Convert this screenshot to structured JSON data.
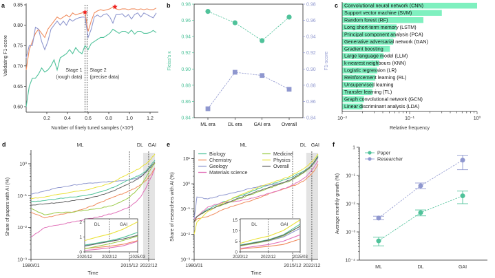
{
  "colors": {
    "teal": "#4fc29a",
    "orange": "#f08b5d",
    "lavender": "#8f97cf",
    "pink": "#e170b8",
    "green": "#9ccc4a",
    "yellow": "#eae23a",
    "gray": "#636363",
    "bar": "#7ff0bf",
    "red_star": "#ee2222",
    "shade": "#e3e3e3"
  },
  "chart_data": [
    {
      "panel": "a",
      "type": "line",
      "ylabel": "Validating F1-score",
      "xlabel": "Number of finely tuned samples (×10³)",
      "xlim": [
        0,
        1.28
      ],
      "ylim": [
        0.6,
        0.85
      ],
      "xticks": [
        "0.2",
        "0.4",
        "0.6",
        "0.8",
        "1.0",
        "1.2"
      ],
      "xtick_values": [
        0.2,
        0.4,
        0.6,
        0.8,
        1.0,
        1.2
      ],
      "yticks": [
        "0.60",
        "0.65",
        "0.70",
        "0.75",
        "0.80",
        "0.85"
      ],
      "ytick_values": [
        0.6,
        0.65,
        0.7,
        0.75,
        0.8,
        0.85
      ],
      "annotations": {
        "stage1": "Stage 1",
        "stage1_sub": "(rough data)",
        "stage2": "Stage 2",
        "stage2_sub": "(precise data)"
      },
      "stage_lines": [
        0.57,
        0.59
      ],
      "x": [
        0.0,
        0.03,
        0.06,
        0.09,
        0.12,
        0.15,
        0.18,
        0.21,
        0.24,
        0.27,
        0.3,
        0.33,
        0.36,
        0.39,
        0.42,
        0.45,
        0.48,
        0.51,
        0.54,
        0.57,
        0.6,
        0.63,
        0.66,
        0.69,
        0.72,
        0.75,
        0.78,
        0.81,
        0.84,
        0.87,
        0.9,
        0.93,
        0.96,
        0.99,
        1.02,
        1.05,
        1.08,
        1.11,
        1.14,
        1.17,
        1.2,
        1.23,
        1.26
      ],
      "series": [
        {
          "name": "orange",
          "color_key": "orange",
          "values": [
            0.69,
            0.74,
            0.76,
            0.78,
            0.79,
            0.78,
            0.77,
            0.79,
            0.8,
            0.81,
            0.82,
            0.815,
            0.82,
            0.825,
            0.82,
            0.83,
            0.825,
            0.828,
            0.83,
            0.832,
            0.785,
            0.81,
            0.83,
            0.835,
            0.838,
            0.836,
            0.838,
            0.84,
            0.845,
            0.84,
            0.838,
            0.84,
            0.84,
            0.838,
            0.84,
            0.84,
            0.838,
            0.84,
            0.838,
            0.84,
            0.838,
            0.838,
            0.842
          ]
        },
        {
          "name": "lavender",
          "color_key": "lavender",
          "values": [
            0.72,
            0.75,
            0.75,
            0.795,
            0.79,
            0.76,
            0.74,
            0.76,
            0.79,
            0.8,
            0.81,
            0.8,
            0.81,
            0.8,
            0.815,
            0.81,
            0.815,
            0.818,
            0.82,
            0.82,
            0.77,
            0.79,
            0.82,
            0.825,
            0.82,
            0.826,
            0.828,
            0.82,
            0.805,
            0.826,
            0.826,
            0.828,
            0.82,
            0.826,
            0.815,
            0.826,
            0.83,
            0.82,
            0.83,
            0.826,
            0.822,
            0.818,
            0.83
          ]
        },
        {
          "name": "teal",
          "color_key": "teal",
          "values": [
            0.6,
            0.65,
            0.67,
            0.67,
            0.68,
            0.695,
            0.685,
            0.69,
            0.7,
            0.715,
            0.69,
            0.72,
            0.725,
            0.73,
            0.74,
            0.73,
            0.745,
            0.735,
            0.73,
            0.75,
            0.74,
            0.755,
            0.76,
            0.765,
            0.77,
            0.77,
            0.775,
            0.78,
            0.79,
            0.785,
            0.78,
            0.785,
            0.785,
            0.78,
            0.788,
            0.778,
            0.785,
            0.785,
            0.78,
            0.78,
            0.782,
            0.787,
            0.782
          ]
        }
      ],
      "best_markers": [
        {
          "x": 0.57,
          "y": 0.832
        },
        {
          "x": 0.86,
          "y": 0.845
        }
      ]
    },
    {
      "panel": "b",
      "type": "line",
      "categories": [
        "ML era",
        "DL era",
        "GAI era",
        "Overall"
      ],
      "ylabel_left": "Fleiss's κ",
      "ylabel_right": "F1-score",
      "ylim": [
        0.84,
        0.98
      ],
      "yticks": [
        "0.84",
        "0.86",
        "0.88",
        "0.90",
        "0.92",
        "0.94",
        "0.96",
        "0.98"
      ],
      "ytick_values": [
        0.84,
        0.86,
        0.88,
        0.9,
        0.92,
        0.94,
        0.96,
        0.98
      ],
      "series": [
        {
          "name": "Fleiss's κ",
          "marker": "circle",
          "color_key": "teal",
          "values": [
            0.971,
            0.957,
            0.935,
            0.964
          ]
        },
        {
          "name": "F1-score",
          "marker": "square",
          "color_key": "lavender",
          "values": [
            0.851,
            0.896,
            0.892,
            0.875
          ]
        }
      ]
    },
    {
      "panel": "c",
      "type": "bar",
      "orientation": "horizontal",
      "xlabel": "Relative frequency",
      "xscale": "log",
      "xlim": [
        0.01,
        1
      ],
      "xticks": [
        "10⁻²",
        "10⁻¹",
        "10⁰"
      ],
      "xtick_values": [
        0.01,
        0.1,
        1
      ],
      "categories": [
        "Convolutional neural network (CNN)",
        "Support vector machine (SVM)",
        "Random forest (RF)",
        "Long short-term memory (LSTM)",
        "Principal component analysis (PCA)",
        "Generative adversarial network (GAN)",
        "Gradient boosting",
        "Large language model (LLM)",
        "k-nearest neighbours (KNN)",
        "Logistic regression (LR)",
        "Reinforcement learning (RL)",
        "Unsupervised learning",
        "Transfer learning (TL)",
        "Graph convolutional network (GCN)",
        "Linear discriminant analysis (LDA)"
      ],
      "values": [
        1.0,
        0.3,
        0.16,
        0.064,
        0.062,
        0.057,
        0.051,
        0.041,
        0.035,
        0.033,
        0.031,
        0.029,
        0.028,
        0.021,
        0.02
      ]
    },
    {
      "panel": "d",
      "type": "line",
      "ylabel": "Share of papers with AI (%)",
      "xlabel": "Time",
      "yscale": "log",
      "ylim": [
        0.001,
        2
      ],
      "yticks": [
        "10⁻³",
        "10⁻²",
        "10⁻¹",
        "10⁰"
      ],
      "ytick_values": [
        0.001,
        0.01,
        0.1,
        1
      ],
      "xlim": [
        1980.0,
        2025.2
      ],
      "xticks": [
        "1980/01",
        "2015/12",
        "2022/12"
      ],
      "xtick_values": [
        1980.0,
        2015.92,
        2022.92
      ],
      "eras": {
        "ml": "ML",
        "dl": "DL",
        "gai": "GAI"
      },
      "era_bounds": [
        2015.92,
        2022.92
      ],
      "x": [
        1980,
        1985,
        1990,
        1995,
        2000,
        2005,
        2010,
        2015,
        2018,
        2020,
        2022,
        2023,
        2024,
        2025.2
      ],
      "series": [
        {
          "name": "Geology",
          "color_key": "lavender",
          "values": [
            0.11,
            0.14,
            0.18,
            0.21,
            0.24,
            0.26,
            0.28,
            0.3,
            0.34,
            0.4,
            0.55,
            0.7,
            0.85,
            1.1
          ]
        },
        {
          "name": "Physics",
          "color_key": "yellow",
          "values": [
            0.08,
            0.09,
            0.11,
            0.13,
            0.15,
            0.19,
            0.27,
            0.45,
            0.6,
            0.75,
            1.0,
            1.2,
            1.5,
            2.0
          ]
        },
        {
          "name": "Biology",
          "color_key": "teal",
          "values": [
            0.065,
            0.07,
            0.08,
            0.09,
            0.1,
            0.13,
            0.18,
            0.3,
            0.38,
            0.45,
            0.6,
            0.75,
            0.95,
            1.3
          ]
        },
        {
          "name": "Overall",
          "color_key": "gray",
          "values": [
            0.05,
            0.055,
            0.06,
            0.07,
            0.08,
            0.1,
            0.14,
            0.22,
            0.3,
            0.38,
            0.55,
            0.7,
            0.85,
            1.1
          ]
        },
        {
          "name": "Chemistry",
          "color_key": "orange",
          "values": [
            0.03,
            0.02,
            0.025,
            0.03,
            0.04,
            0.06,
            0.09,
            0.13,
            0.17,
            0.22,
            0.3,
            0.38,
            0.5,
            0.75
          ]
        },
        {
          "name": "Medicine",
          "color_key": "green",
          "values": [
            0.04,
            0.025,
            0.03,
            0.03,
            0.035,
            0.04,
            0.05,
            0.08,
            0.13,
            0.2,
            0.38,
            0.55,
            0.75,
            1.05
          ]
        },
        {
          "name": "Materials science",
          "color_key": "pink",
          "values": [
            0.005,
            0.01,
            0.012,
            0.015,
            0.018,
            0.022,
            0.028,
            0.04,
            0.06,
            0.09,
            0.18,
            0.28,
            0.4,
            0.7
          ]
        }
      ],
      "inset": {
        "yticks": [
          "0",
          "1",
          "2"
        ],
        "ytick_values": [
          0,
          1,
          2
        ],
        "xticks": [
          "2020/12",
          "2022/12",
          "2025/03"
        ],
        "labels": {
          "dl": "DL",
          "gai": "GAI"
        }
      }
    },
    {
      "panel": "e",
      "type": "line",
      "ylabel": "Share of researchers with AI (%)",
      "xlabel": "Time",
      "yscale": "log",
      "ylim": [
        0.001,
        15
      ],
      "yticks": [
        "10⁻³",
        "10⁻²",
        "10⁻¹",
        "10⁰",
        "10¹"
      ],
      "ytick_values": [
        0.001,
        0.01,
        0.1,
        1,
        10
      ],
      "xlim": [
        1980.0,
        2025.2
      ],
      "xticks": [
        "1980/01",
        "2015/12",
        "2022/12"
      ],
      "xtick_values": [
        1980.0,
        2015.92,
        2022.92
      ],
      "eras": {
        "ml": "ML",
        "dl": "DL",
        "gai": "GAI"
      },
      "era_bounds": [
        2015.92,
        2022.92
      ],
      "legend": [
        "Biology",
        "Chemistry",
        "Geology",
        "Materials science",
        "Medicine",
        "Physics",
        "Overall"
      ],
      "x": [
        1980,
        1981,
        1985,
        1990,
        1995,
        2000,
        2005,
        2010,
        2015,
        2018,
        2020,
        2022,
        2023,
        2024,
        2025.2
      ],
      "series": [
        {
          "name": "Biology",
          "color_key": "teal",
          "values": [
            0.04,
            0.05,
            0.1,
            0.18,
            0.28,
            0.45,
            0.75,
            1.1,
            1.7,
            2.5,
            3.2,
            4.5,
            5.8,
            8,
            13
          ]
        },
        {
          "name": "Chemistry",
          "color_key": "orange",
          "values": [
            0.03,
            0.04,
            0.05,
            0.09,
            0.14,
            0.2,
            0.32,
            0.5,
            0.75,
            1.0,
            1.3,
            2.0,
            2.6,
            3.5,
            6
          ]
        },
        {
          "name": "Geology",
          "color_key": "lavender",
          "values": [
            0.04,
            0.3,
            0.25,
            0.35,
            0.45,
            0.65,
            0.85,
            1.0,
            1.3,
            2.0,
            2.8,
            4.0,
            5.2,
            7,
            11
          ]
        },
        {
          "name": "Materials science",
          "color_key": "pink",
          "values": [
            0.04,
            0.05,
            0.12,
            0.18,
            0.2,
            0.25,
            0.35,
            0.5,
            0.8,
            1.2,
            1.6,
            2.6,
            3.5,
            5,
            8
          ]
        },
        {
          "name": "Medicine",
          "color_key": "green",
          "values": [
            0.03,
            0.05,
            0.09,
            0.14,
            0.22,
            0.35,
            0.55,
            0.85,
            1.3,
            2.0,
            2.8,
            4.0,
            5.4,
            7.5,
            12
          ]
        },
        {
          "name": "Physics",
          "color_key": "yellow",
          "values": [
            0.01,
            0.03,
            0.08,
            0.16,
            0.3,
            0.5,
            0.85,
            1.3,
            2.0,
            3.0,
            4.0,
            6.0,
            7.5,
            10,
            15
          ]
        },
        {
          "name": "Overall",
          "color_key": "gray",
          "values": [
            0.03,
            0.05,
            0.09,
            0.15,
            0.24,
            0.38,
            0.6,
            0.9,
            1.4,
            2.2,
            3.0,
            4.3,
            5.6,
            7.8,
            12
          ]
        }
      ],
      "inset": {
        "yticks": [
          "0",
          "5",
          "10",
          "15"
        ],
        "ytick_values": [
          0,
          5,
          10,
          15
        ],
        "xticks": [
          "2020/12",
          "2022/12",
          "2025/03"
        ],
        "labels": {
          "dl": "DL",
          "gai": "GAI"
        }
      }
    },
    {
      "panel": "f",
      "type": "scatter",
      "ylabel": "Average monthly growth (%)",
      "yscale": "log",
      "ylim": [
        0.0001,
        1
      ],
      "yticks": [
        "10⁻⁴",
        "10⁻³",
        "10⁻²",
        "10⁻¹",
        "1"
      ],
      "ytick_values": [
        0.0001,
        0.001,
        0.01,
        0.1,
        1
      ],
      "categories": [
        "ML",
        "DL",
        "GAI"
      ],
      "series": [
        {
          "name": "Paper",
          "color_key": "teal",
          "values": [
            0.00048,
            0.0048,
            0.019
          ],
          "err_low": [
            0.00032,
            0.0037,
            0.01
          ],
          "err_high": [
            0.00065,
            0.006,
            0.028
          ]
        },
        {
          "name": "Researcher",
          "color_key": "lavender",
          "values": [
            0.0031,
            0.043,
            0.35
          ],
          "err_low": [
            0.0027,
            0.034,
            0.16
          ],
          "err_high": [
            0.0036,
            0.054,
            0.52
          ]
        }
      ]
    }
  ],
  "panel_labels": [
    "a",
    "b",
    "c",
    "d",
    "e",
    "f"
  ]
}
